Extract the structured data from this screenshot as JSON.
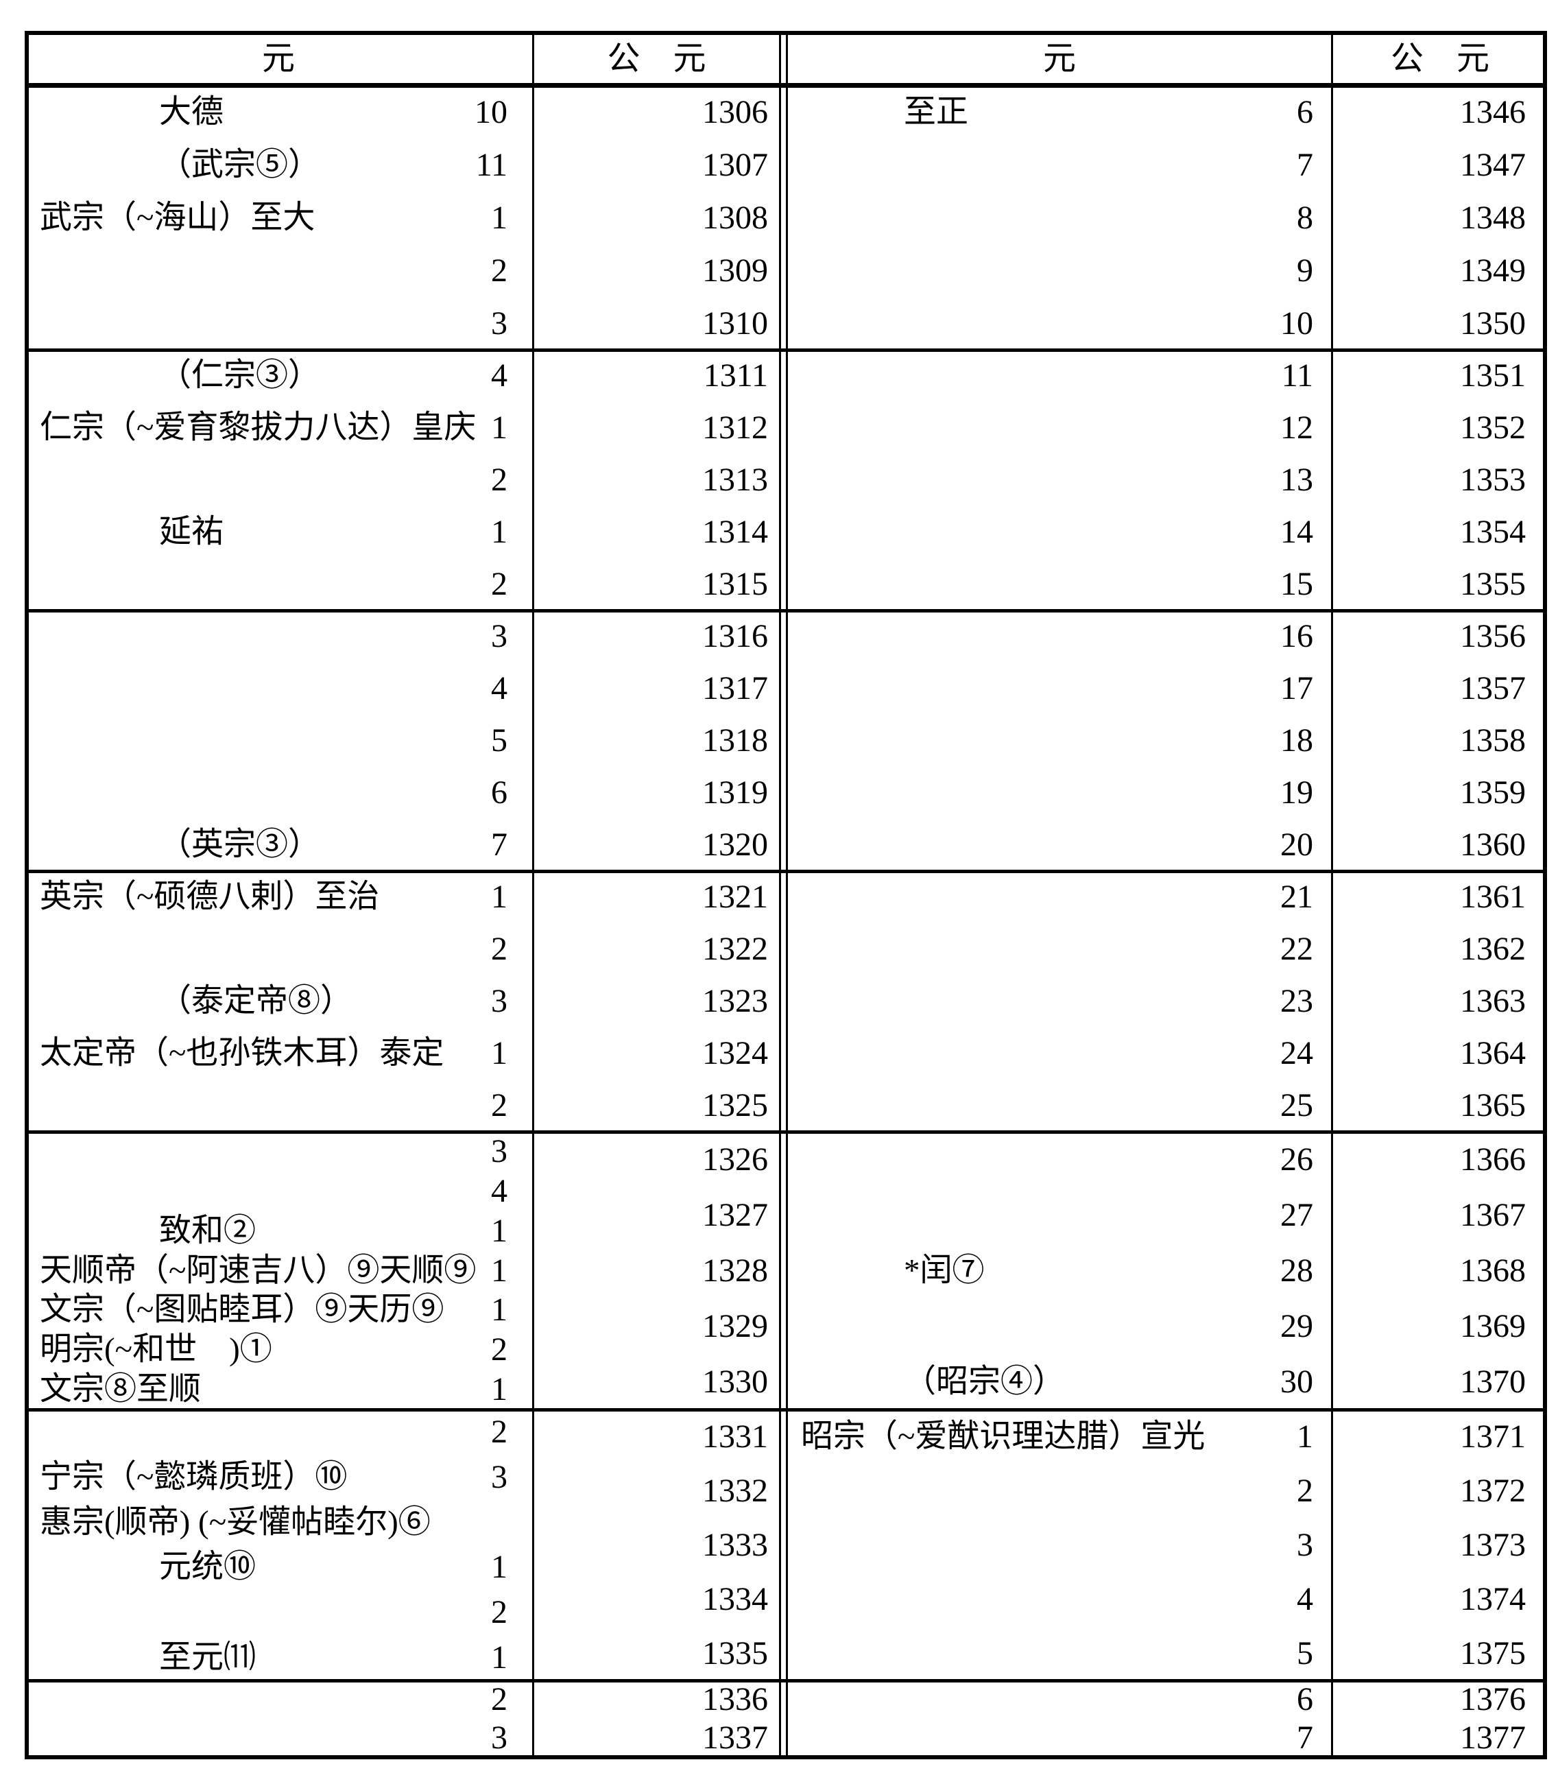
{
  "header": {
    "era": "元",
    "gregorian": "公　元"
  },
  "left_half": {
    "groups": [
      {
        "type": "normal",
        "rows": [
          {
            "era": "大德",
            "style": "indent",
            "num": "10",
            "year": "1306"
          },
          {
            "era": "（武宗⑤）",
            "style": "indent",
            "num": "11",
            "year": "1307"
          },
          {
            "era": "武宗（~海山）至大",
            "style": "flush",
            "num": "1",
            "year": "1308"
          },
          {
            "era": "",
            "style": "flush",
            "num": "2",
            "year": "1309"
          },
          {
            "era": "",
            "style": "flush",
            "num": "3",
            "year": "1310"
          }
        ]
      },
      {
        "type": "normal",
        "rows": [
          {
            "era": "（仁宗③）",
            "style": "indent",
            "num": "4",
            "year": "1311"
          },
          {
            "era": "仁宗（~爱育黎拔力八达）皇庆",
            "style": "flush",
            "num": "1",
            "year": "1312"
          },
          {
            "era": "",
            "style": "flush",
            "num": "2",
            "year": "1313"
          },
          {
            "era": "延祐",
            "style": "indent",
            "num": "1",
            "year": "1314"
          },
          {
            "era": "",
            "style": "flush",
            "num": "2",
            "year": "1315"
          }
        ]
      },
      {
        "type": "normal",
        "rows": [
          {
            "era": "",
            "style": "flush",
            "num": "3",
            "year": "1316"
          },
          {
            "era": "",
            "style": "flush",
            "num": "4",
            "year": "1317"
          },
          {
            "era": "",
            "style": "flush",
            "num": "5",
            "year": "1318"
          },
          {
            "era": "",
            "style": "flush",
            "num": "6",
            "year": "1319"
          },
          {
            "era": "（英宗③）",
            "style": "indent",
            "num": "7",
            "year": "1320"
          }
        ]
      },
      {
        "type": "normal",
        "rows": [
          {
            "era": "英宗（~硕德八剌）至治",
            "style": "flush",
            "num": "1",
            "year": "1321"
          },
          {
            "era": "",
            "style": "flush",
            "num": "2",
            "year": "1322"
          },
          {
            "era": "（泰定帝⑧）",
            "style": "indent",
            "num": "3",
            "year": "1323"
          },
          {
            "era": "太定帝（~也孙铁木耳）泰定",
            "style": "flush",
            "num": "1",
            "year": "1324"
          },
          {
            "era": "",
            "style": "flush",
            "num": "2",
            "year": "1325"
          }
        ]
      },
      {
        "type": "split",
        "era_lines": [
          {
            "era": "",
            "style": "flush",
            "num": "3"
          },
          {
            "era": "",
            "style": "flush",
            "num": "4"
          },
          {
            "era": "致和②",
            "style": "indent",
            "num": "1"
          },
          {
            "era": "天顺帝（~阿速吉八）⑨天顺⑨",
            "style": "flush",
            "num": "1"
          },
          {
            "era": "文宗（~图贴睦耳）⑨天历⑨",
            "style": "flush",
            "num": "1"
          },
          {
            "era": "明宗(~和世　)①",
            "style": "flush",
            "num": "2"
          },
          {
            "era": "文宗⑧至顺",
            "style": "flush",
            "num": "1"
          }
        ],
        "years": [
          "1326",
          "1327",
          "1328",
          "1329",
          "1330"
        ]
      },
      {
        "type": "split",
        "era_lines": [
          {
            "era": "",
            "style": "flush",
            "num": "2"
          },
          {
            "era": "宁宗（~懿璘质班）⑩",
            "style": "flush",
            "num": "3"
          },
          {
            "era": "惠宗(顺帝) (~妥懽帖睦尔)⑥",
            "style": "flush",
            "num": ""
          },
          {
            "era": "元统⑩",
            "style": "indent",
            "num": "1"
          },
          {
            "era": "",
            "style": "flush",
            "num": "2"
          },
          {
            "era": "至元⑾",
            "style": "indent",
            "num": "1"
          }
        ],
        "years": [
          "1331",
          "1332",
          "1333",
          "1334",
          "1335"
        ]
      },
      {
        "type": "normal",
        "rows": [
          {
            "era": "",
            "style": "flush",
            "num": "2",
            "year": "1336"
          },
          {
            "era": "",
            "style": "flush",
            "num": "3",
            "year": "1337"
          }
        ]
      }
    ]
  },
  "right_half": {
    "groups": [
      {
        "type": "normal",
        "rows": [
          {
            "era": "至正",
            "style": "indent",
            "num": "6",
            "year": "1346"
          },
          {
            "era": "",
            "style": "flush",
            "num": "7",
            "year": "1347"
          },
          {
            "era": "",
            "style": "flush",
            "num": "8",
            "year": "1348"
          },
          {
            "era": "",
            "style": "flush",
            "num": "9",
            "year": "1349"
          },
          {
            "era": "",
            "style": "flush",
            "num": "10",
            "year": "1350"
          }
        ]
      },
      {
        "type": "normal",
        "rows": [
          {
            "era": "",
            "style": "flush",
            "num": "11",
            "year": "1351"
          },
          {
            "era": "",
            "style": "flush",
            "num": "12",
            "year": "1352"
          },
          {
            "era": "",
            "style": "flush",
            "num": "13",
            "year": "1353"
          },
          {
            "era": "",
            "style": "flush",
            "num": "14",
            "year": "1354"
          },
          {
            "era": "",
            "style": "flush",
            "num": "15",
            "year": "1355"
          }
        ]
      },
      {
        "type": "normal",
        "rows": [
          {
            "era": "",
            "style": "flush",
            "num": "16",
            "year": "1356"
          },
          {
            "era": "",
            "style": "flush",
            "num": "17",
            "year": "1357"
          },
          {
            "era": "",
            "style": "flush",
            "num": "18",
            "year": "1358"
          },
          {
            "era": "",
            "style": "flush",
            "num": "19",
            "year": "1359"
          },
          {
            "era": "",
            "style": "flush",
            "num": "20",
            "year": "1360"
          }
        ]
      },
      {
        "type": "normal",
        "rows": [
          {
            "era": "",
            "style": "flush",
            "num": "21",
            "year": "1361"
          },
          {
            "era": "",
            "style": "flush",
            "num": "22",
            "year": "1362"
          },
          {
            "era": "",
            "style": "flush",
            "num": "23",
            "year": "1363"
          },
          {
            "era": "",
            "style": "flush",
            "num": "24",
            "year": "1364"
          },
          {
            "era": "",
            "style": "flush",
            "num": "25",
            "year": "1365"
          }
        ]
      },
      {
        "type": "normal",
        "rows": [
          {
            "era": "",
            "style": "flush",
            "num": "26",
            "year": "1366"
          },
          {
            "era": "",
            "style": "flush",
            "num": "27",
            "year": "1367"
          },
          {
            "era": "*闰⑦",
            "style": "indent",
            "num": "28",
            "year": "1368"
          },
          {
            "era": "",
            "style": "flush",
            "num": "29",
            "year": "1369"
          },
          {
            "era": "（昭宗④）",
            "style": "indent",
            "num": "30",
            "year": "1370"
          }
        ]
      },
      {
        "type": "normal",
        "rows": [
          {
            "era": "昭宗（~爱猷识理达腊）宣光",
            "style": "flush",
            "num": "1",
            "year": "1371"
          },
          {
            "era": "",
            "style": "flush",
            "num": "2",
            "year": "1372"
          },
          {
            "era": "",
            "style": "flush",
            "num": "3",
            "year": "1373"
          },
          {
            "era": "",
            "style": "flush",
            "num": "4",
            "year": "1374"
          },
          {
            "era": "",
            "style": "flush",
            "num": "5",
            "year": "1375"
          }
        ]
      },
      {
        "type": "normal",
        "rows": [
          {
            "era": "",
            "style": "flush",
            "num": "6",
            "year": "1376"
          },
          {
            "era": "",
            "style": "flush",
            "num": "7",
            "year": "1377"
          }
        ]
      }
    ]
  },
  "colors": {
    "ink": "#000000",
    "paper": "#ffffff"
  }
}
